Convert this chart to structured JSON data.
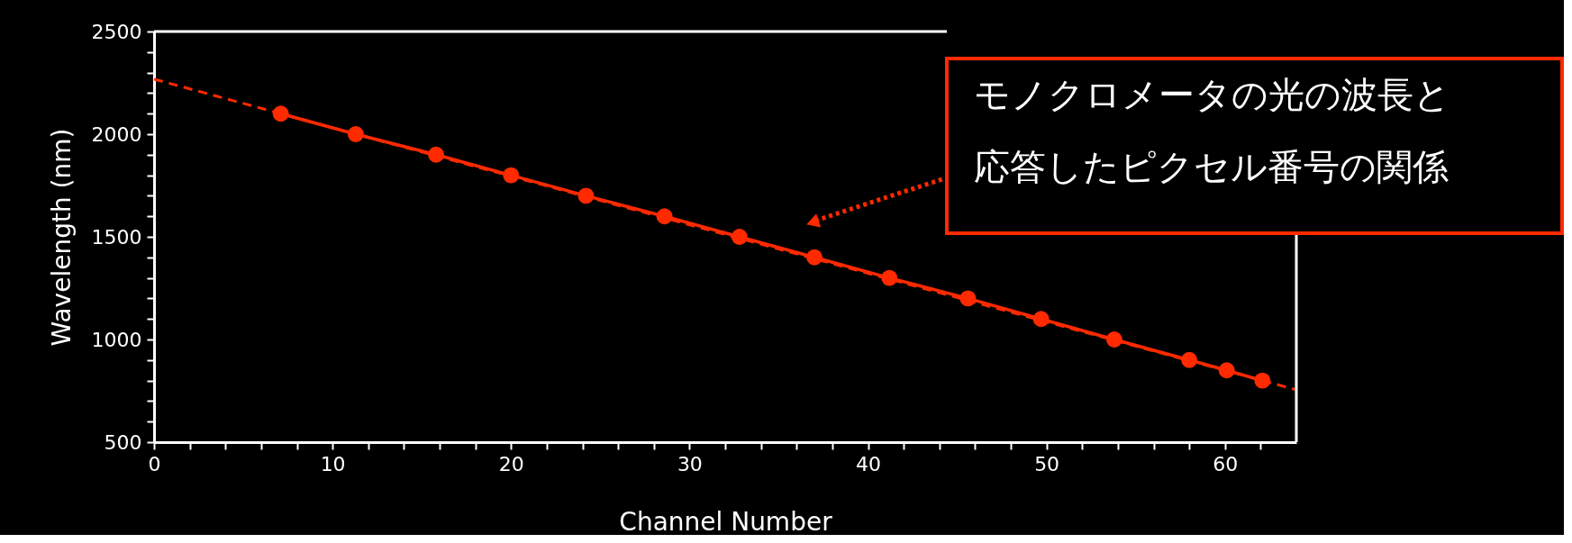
{
  "chart_data": {
    "type": "line",
    "xlabel": "Channel Number",
    "ylabel": "Wavelength (nm)",
    "xlim": [
      0,
      64
    ],
    "ylim": [
      500,
      2500
    ],
    "xticks": [
      0,
      {
        "value": 2,
        "label": null
      },
      {
        "value": 4,
        "label": null
      },
      {
        "value": 6,
        "label": null
      },
      {
        "value": 8,
        "label": null
      },
      10,
      {
        "value": 12,
        "label": null
      },
      {
        "value": 14,
        "label": null
      },
      {
        "value": 16,
        "label": null
      },
      {
        "value": 18,
        "label": null
      },
      20,
      {
        "value": 22,
        "label": null
      },
      {
        "value": 24,
        "label": null
      },
      {
        "value": 26,
        "label": null
      },
      {
        "value": 28,
        "label": null
      },
      30,
      {
        "value": 32,
        "label": null
      },
      {
        "value": 34,
        "label": null
      },
      {
        "value": 36,
        "label": null
      },
      {
        "value": 38,
        "label": null
      },
      40,
      {
        "value": 42,
        "label": null
      },
      {
        "value": 44,
        "label": null
      },
      {
        "value": 46,
        "label": null
      },
      {
        "value": 48,
        "label": null
      },
      50,
      {
        "value": 52,
        "label": null
      },
      {
        "value": 54,
        "label": null
      },
      {
        "value": 56,
        "label": null
      },
      {
        "value": 58,
        "label": null
      },
      60,
      {
        "value": 62,
        "label": null
      }
    ],
    "yticks": [
      500,
      {
        "value": 600,
        "label": null
      },
      {
        "value": 700,
        "label": null
      },
      {
        "value": 800,
        "label": null
      },
      {
        "value": 900,
        "label": null
      },
      1000,
      {
        "value": 1100,
        "label": null
      },
      {
        "value": 1200,
        "label": null
      },
      {
        "value": 1300,
        "label": null
      },
      {
        "value": 1400,
        "label": null
      },
      1500,
      {
        "value": 1600,
        "label": null
      },
      {
        "value": 1700,
        "label": null
      },
      {
        "value": 1800,
        "label": null
      },
      {
        "value": 1900,
        "label": null
      },
      2000,
      {
        "value": 2100,
        "label": null
      },
      {
        "value": 2200,
        "label": null
      },
      {
        "value": 2300,
        "label": null
      },
      {
        "value": 2400,
        "label": null
      },
      2500
    ],
    "grid": false,
    "series": [
      {
        "color": "#ff2a00",
        "line_style": "dashed",
        "marker": "none",
        "x": [
          0,
          64
        ],
        "values": [
          2268,
          755
        ]
      },
      {
        "color": "#ff2a00",
        "line_style": "solid",
        "marker": "circle",
        "x": [
          7.1,
          11.3,
          15.8,
          20.0,
          24.2,
          28.6,
          32.8,
          37.0,
          41.2,
          45.6,
          49.7,
          53.8,
          58.0,
          60.1,
          62.1
        ],
        "values": [
          2100,
          2000,
          1900,
          1800,
          1700,
          1600,
          1500,
          1400,
          1300,
          1200,
          1100,
          1000,
          900,
          850,
          800
        ]
      }
    ],
    "annotations": [
      "モノクロメータの光の波長と",
      "応答したピクセル番号の関係"
    ]
  }
}
